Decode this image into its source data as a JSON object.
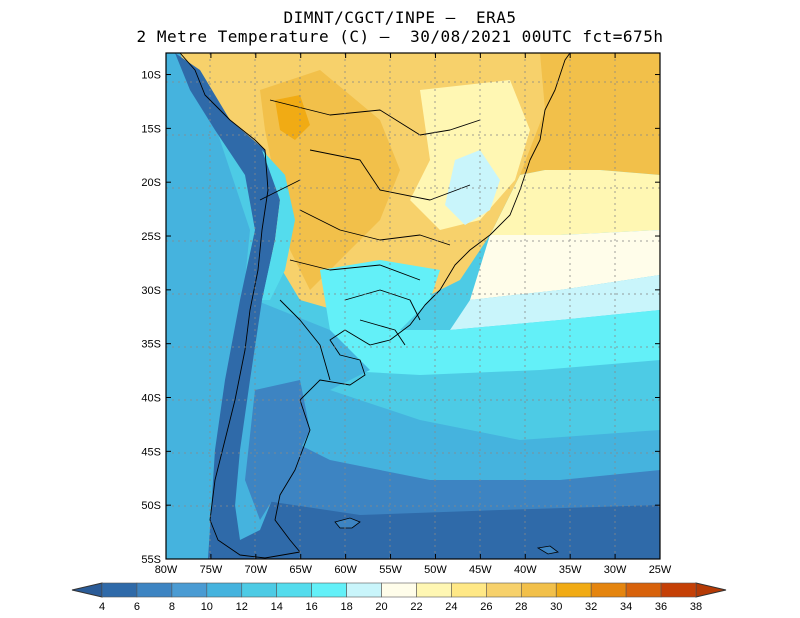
{
  "header": {
    "line1": "DIMNT/CGCT/INPE —  ERA5",
    "line2": "2 Metre Temperature (C) —  30/08/2021 00UTC fct=675h"
  },
  "map": {
    "lat_labels": [
      "10S",
      "15S",
      "20S",
      "25S",
      "30S",
      "35S",
      "40S",
      "45S",
      "50S",
      "55S"
    ],
    "lon_labels": [
      "80W",
      "75W",
      "70W",
      "65W",
      "60W",
      "55W",
      "50W",
      "45W",
      "40W",
      "35W",
      "30W",
      "25W"
    ],
    "extent": {
      "lon": [
        -80,
        -25
      ],
      "lat": [
        -55,
        -8
      ]
    }
  },
  "colorbar": {
    "labels": [
      "4",
      "6",
      "8",
      "10",
      "12",
      "14",
      "16",
      "18",
      "20",
      "22",
      "24",
      "26",
      "28",
      "30",
      "32",
      "34",
      "36",
      "38"
    ],
    "colors": [
      "#2f6aa9",
      "#3d84c2",
      "#4a9bd3",
      "#45b3de",
      "#4dcbe5",
      "#54dced",
      "#63f0f8",
      "#c9f5fb",
      "#fffdea",
      "#fff7b3",
      "#ffe886",
      "#f7d16b",
      "#f2c04a",
      "#f1ab14",
      "#e5850e",
      "#d8620b",
      "#c54006",
      "#bf3005"
    ],
    "low_arrow_color": "#2a5b97",
    "high_arrow_color": "#b53a05"
  }
}
